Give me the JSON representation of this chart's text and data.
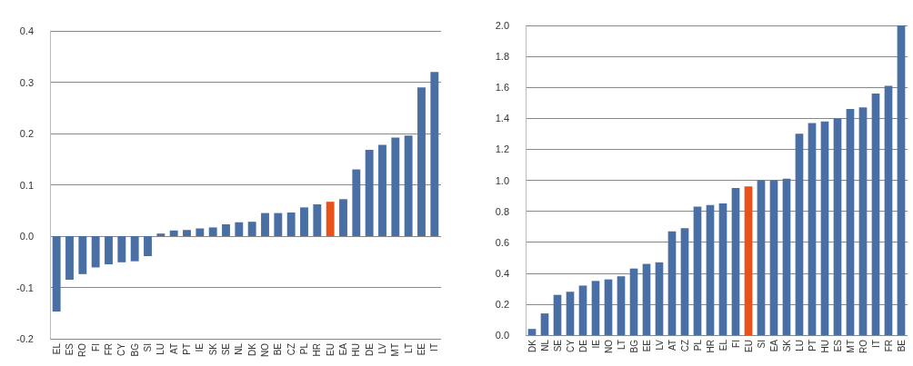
{
  "chart_data": [
    {
      "type": "bar",
      "categories": [
        "EL",
        "ES",
        "RO",
        "FI",
        "FR",
        "CY",
        "BG",
        "SI",
        "LU",
        "AT",
        "PT",
        "IE",
        "SK",
        "SE",
        "NL",
        "DK",
        "NO",
        "BE",
        "CZ",
        "PL",
        "HR",
        "EU",
        "EA",
        "HU",
        "DE",
        "LV",
        "MT",
        "LT",
        "EE",
        "IT"
      ],
      "values": [
        -0.147,
        -0.085,
        -0.074,
        -0.061,
        -0.055,
        -0.051,
        -0.049,
        -0.039,
        0.005,
        0.011,
        0.012,
        0.015,
        0.017,
        0.023,
        0.027,
        0.028,
        0.045,
        0.045,
        0.046,
        0.056,
        0.062,
        0.067,
        0.072,
        0.13,
        0.168,
        0.178,
        0.192,
        0.196,
        0.29,
        0.32
      ],
      "colors": [
        "#4a6fa5",
        "#4a6fa5",
        "#4a6fa5",
        "#4a6fa5",
        "#4a6fa5",
        "#4a6fa5",
        "#4a6fa5",
        "#4a6fa5",
        "#4a6fa5",
        "#4a6fa5",
        "#4a6fa5",
        "#4a6fa5",
        "#4a6fa5",
        "#4a6fa5",
        "#4a6fa5",
        "#4a6fa5",
        "#4a6fa5",
        "#4a6fa5",
        "#4a6fa5",
        "#4a6fa5",
        "#4a6fa5",
        "#e8521a",
        "#4a6fa5",
        "#4a6fa5",
        "#4a6fa5",
        "#4a6fa5",
        "#4a6fa5",
        "#4a6fa5",
        "#4a6fa5",
        "#4a6fa5"
      ],
      "ylim": [
        -0.2,
        0.4
      ],
      "yticks": [
        {
          "value": -0.2,
          "label": "-0.2"
        },
        {
          "value": -0.1,
          "label": "-0.1"
        },
        {
          "value": 0,
          "label": "0.0"
        },
        {
          "value": 0.1,
          "label": "0.1"
        },
        {
          "value": 0.2,
          "label": "0.2"
        },
        {
          "value": 0.3,
          "label": "0.3"
        },
        {
          "value": 0.4,
          "label": "0.4"
        }
      ],
      "grid": "y"
    },
    {
      "type": "bar",
      "categories": [
        "DK",
        "NL",
        "SE",
        "CY",
        "DE",
        "IE",
        "NO",
        "LT",
        "BG",
        "EE",
        "LV",
        "AT",
        "CZ",
        "PL",
        "HR",
        "EL",
        "FI",
        "EU",
        "SI",
        "EA",
        "SK",
        "LU",
        "PT",
        "HU",
        "ES",
        "MT",
        "RO",
        "IT",
        "FR",
        "BE"
      ],
      "values": [
        0.04,
        0.14,
        0.26,
        0.28,
        0.32,
        0.35,
        0.36,
        0.38,
        0.43,
        0.46,
        0.47,
        0.67,
        0.69,
        0.83,
        0.84,
        0.85,
        0.95,
        0.96,
        1.0,
        1.0,
        1.01,
        1.3,
        1.37,
        1.38,
        1.4,
        1.46,
        1.47,
        1.56,
        1.61,
        2.0
      ],
      "colors": [
        "#4a6fa5",
        "#4a6fa5",
        "#4a6fa5",
        "#4a6fa5",
        "#4a6fa5",
        "#4a6fa5",
        "#4a6fa5",
        "#4a6fa5",
        "#4a6fa5",
        "#4a6fa5",
        "#4a6fa5",
        "#4a6fa5",
        "#4a6fa5",
        "#4a6fa5",
        "#4a6fa5",
        "#4a6fa5",
        "#4a6fa5",
        "#e8521a",
        "#4a6fa5",
        "#4a6fa5",
        "#4a6fa5",
        "#4a6fa5",
        "#4a6fa5",
        "#4a6fa5",
        "#4a6fa5",
        "#4a6fa5",
        "#4a6fa5",
        "#4a6fa5",
        "#4a6fa5",
        "#4a6fa5"
      ],
      "ylim": [
        0,
        2.0
      ],
      "yticks": [
        {
          "value": 0,
          "label": "0.0"
        },
        {
          "value": 0.2,
          "label": "0.2"
        },
        {
          "value": 0.4,
          "label": "0.4"
        },
        {
          "value": 0.6,
          "label": "0.6"
        },
        {
          "value": 0.8,
          "label": "0.8"
        },
        {
          "value": 1.0,
          "label": "1.0"
        },
        {
          "value": 1.2,
          "label": "1.2"
        },
        {
          "value": 1.4,
          "label": "1.4"
        },
        {
          "value": 1.6,
          "label": "1.6"
        },
        {
          "value": 1.8,
          "label": "1.8"
        },
        {
          "value": 2.0,
          "label": "2.0"
        }
      ],
      "grid": "y"
    }
  ]
}
